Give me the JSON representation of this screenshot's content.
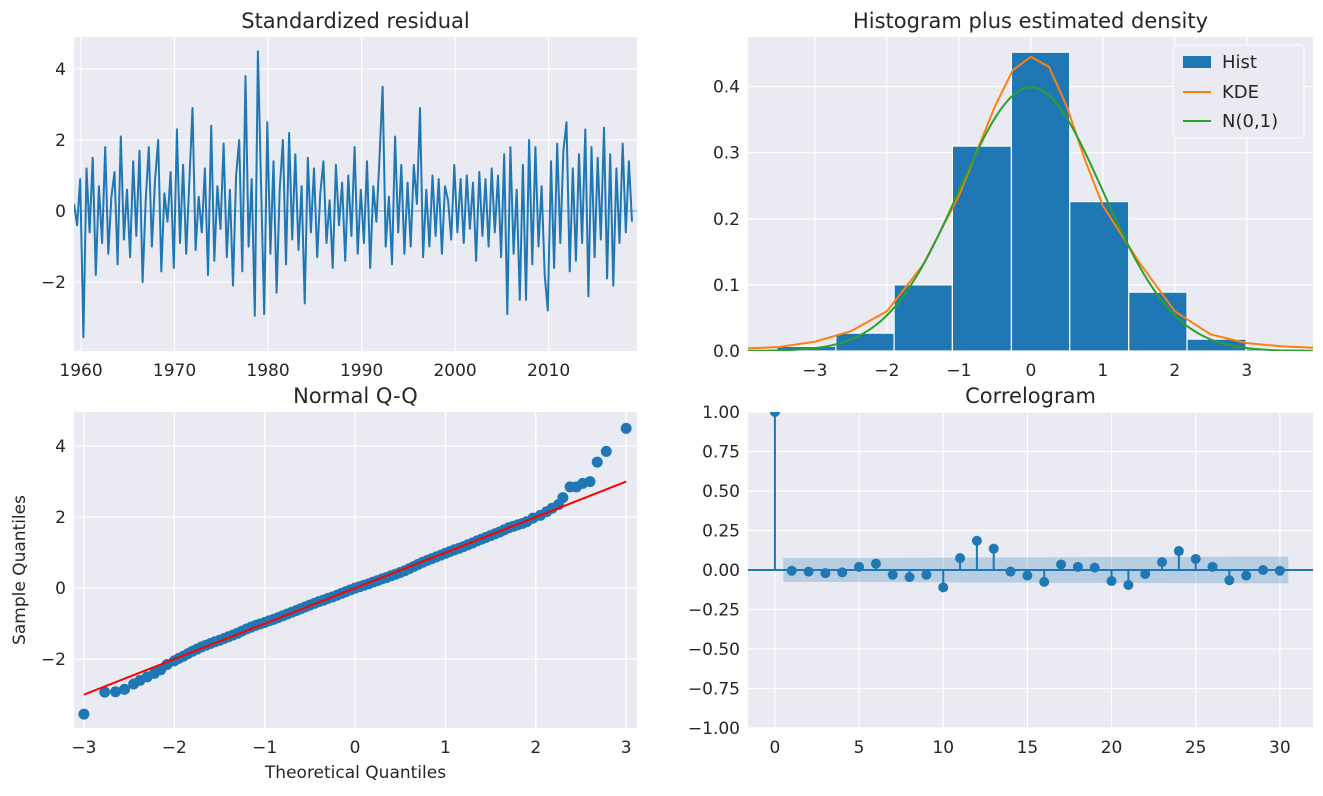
{
  "colors": {
    "axes_bg": "#EAEAF2",
    "grid": "#FFFFFF",
    "series": "#1F77B4",
    "kde": "#FF7F0E",
    "normal": "#2CA02C",
    "qq_line": "#FF0000",
    "band": "#1F77B4"
  },
  "chart_data": [
    {
      "type": "line",
      "title": "Standardized residual",
      "xlabel": "",
      "ylabel": "",
      "xlim": [
        1959.25,
        2019.45
      ],
      "ylim": [
        -3.94,
        4.9
      ],
      "grid": true,
      "xticks": [
        1960,
        1970,
        1980,
        1990,
        2000,
        2010
      ],
      "xtick_labels": [
        "1960",
        "1970",
        "1980",
        "1990",
        "2000",
        "2010"
      ],
      "yticks": [
        -2,
        0,
        2,
        4
      ],
      "ytick_labels": [
        "−2",
        "0",
        "2",
        "4"
      ],
      "values": [
        0.2,
        -0.4,
        0.9,
        -3.55,
        1.2,
        -0.6,
        1.5,
        -1.8,
        0.7,
        -0.9,
        1.8,
        -1.2,
        0.4,
        1.1,
        -1.5,
        2.1,
        -0.8,
        0.6,
        -1.3,
        1.4,
        -0.7,
        1.7,
        -2.0,
        0.3,
        1.8,
        -1.0,
        0.9,
        2.0,
        -1.7,
        0.5,
        -0.3,
        1.1,
        -1.6,
        2.3,
        -0.9,
        1.3,
        -1.2,
        0.8,
        2.9,
        -1.1,
        0.4,
        -0.6,
        1.2,
        -1.8,
        2.4,
        -1.4,
        0.7,
        -0.5,
        1.9,
        -1.3,
        0.6,
        -2.1,
        1.0,
        2.0,
        -1.7,
        3.8,
        -1.0,
        0.9,
        -2.95,
        4.5,
        0.8,
        -2.9,
        2.5,
        -1.2,
        1.4,
        -2.3,
        0.6,
        2.0,
        -1.5,
        2.2,
        -0.8,
        1.6,
        -1.1,
        0.7,
        -2.6,
        1.5,
        -0.6,
        1.2,
        -1.3,
        0.5,
        1.4,
        -0.9,
        0.3,
        -1.6,
        1.3,
        -0.4,
        0.8,
        -1.4,
        1.0,
        -0.7,
        1.8,
        -1.2,
        0.6,
        -0.9,
        1.4,
        -1.6,
        0.7,
        -0.3,
        1.5,
        3.5,
        -1.0,
        0.4,
        -1.5,
        2.1,
        -0.6,
        1.3,
        -1.2,
        0.8,
        -1.0,
        1.3,
        0.2,
        2.9,
        -1.3,
        0.6,
        -1.0,
        1.0,
        -0.7,
        0.9,
        -1.2,
        0.7,
        0.3,
        -0.8,
        1.3,
        -0.6,
        0.9,
        -0.9,
        1.0,
        -0.5,
        0.8,
        -1.4,
        1.1,
        -0.7,
        0.9,
        -1.0,
        1.2,
        -0.6,
        1.0,
        -1.3,
        1.6,
        -2.9,
        1.8,
        -1.2,
        0.6,
        -2.5,
        1.3,
        -2.5,
        2.0,
        -1.5,
        1.8,
        -1.0,
        0.7,
        -1.8,
        -2.8,
        1.4,
        -1.6,
        1.9,
        -0.9,
        1.7,
        2.5,
        -1.7,
        1.2,
        -1.4,
        1.6,
        -0.9,
        2.3,
        -2.4,
        1.8,
        -1.3,
        1.5,
        -0.8,
        2.35,
        -1.9,
        1.6,
        -2.1,
        1.2,
        -0.9,
        1.9,
        -0.6,
        1.4,
        -0.3
      ]
    },
    {
      "type": "bar",
      "title": "Histogram plus estimated density",
      "xlim": [
        -3.93,
        3.92
      ],
      "ylim": [
        0,
        0.475
      ],
      "grid": true,
      "xticks": [
        -3,
        -2,
        -1,
        0,
        1,
        2,
        3
      ],
      "xtick_labels": [
        "−3",
        "−2",
        "−1",
        "0",
        "1",
        "2",
        "3"
      ],
      "yticks": [
        0,
        0.1,
        0.2,
        0.3,
        0.4
      ],
      "ytick_labels": [
        "0.0",
        "0.1",
        "0.2",
        "0.3",
        "0.4"
      ],
      "bin_edges": [
        -3.53,
        -2.71,
        -1.9,
        -1.09,
        -0.27,
        0.54,
        1.36,
        2.17,
        2.99,
        3.8
      ],
      "values": [
        0.007,
        0.027,
        0.1,
        0.31,
        0.452,
        0.226,
        0.089,
        0.018,
        0.003
      ],
      "kde": {
        "x": [
          -3.93,
          -3.5,
          -3,
          -2.5,
          -2,
          -1.5,
          -1,
          -0.5,
          -0.25,
          0,
          0.25,
          0.5,
          0.75,
          1,
          1.5,
          2,
          2.5,
          3,
          3.5,
          3.92
        ],
        "y": [
          0.004,
          0.006,
          0.014,
          0.03,
          0.06,
          0.13,
          0.235,
          0.37,
          0.425,
          0.445,
          0.43,
          0.37,
          0.29,
          0.22,
          0.135,
          0.06,
          0.025,
          0.012,
          0.007,
          0.005
        ]
      },
      "normal": {
        "mean": 0,
        "sd": 1
      },
      "legend": {
        "placement": "top-right",
        "entries": [
          "Hist",
          "KDE",
          "N(0,1)"
        ]
      }
    },
    {
      "type": "scatter",
      "title": "Normal Q-Q",
      "xlabel": "Theoretical Quantiles",
      "ylabel": "Sample Quantiles",
      "xlim": [
        -3.11,
        3.12
      ],
      "ylim": [
        -3.94,
        4.96
      ],
      "grid": true,
      "xticks": [
        -3,
        -2,
        -1,
        0,
        1,
        2,
        3
      ],
      "xtick_labels": [
        "−3",
        "−2",
        "−1",
        "0",
        "1",
        "2",
        "3"
      ],
      "yticks": [
        -2,
        0,
        2,
        4
      ],
      "ytick_labels": [
        "−2",
        "0",
        "2",
        "4"
      ],
      "points": [
        [
          -3.0,
          -3.55
        ],
        [
          -2.77,
          -2.93
        ],
        [
          -2.65,
          -2.92
        ],
        [
          -2.55,
          -2.85
        ],
        [
          -2.45,
          -2.7
        ],
        [
          -2.38,
          -2.6
        ],
        [
          -2.3,
          -2.5
        ],
        [
          -2.22,
          -2.4
        ],
        [
          -2.15,
          -2.3
        ],
        [
          -2.08,
          -2.15
        ],
        [
          -2.0,
          -2.05
        ],
        [
          -1.95,
          -1.98
        ],
        [
          -1.9,
          -1.92
        ],
        [
          -1.85,
          -1.85
        ],
        [
          -1.8,
          -1.78
        ],
        [
          -1.75,
          -1.72
        ],
        [
          -1.7,
          -1.66
        ],
        [
          -1.65,
          -1.61
        ],
        [
          -1.6,
          -1.56
        ],
        [
          -1.55,
          -1.51
        ],
        [
          -1.5,
          -1.47
        ],
        [
          -1.45,
          -1.42
        ],
        [
          -1.4,
          -1.37
        ],
        [
          -1.35,
          -1.32
        ],
        [
          -1.3,
          -1.27
        ],
        [
          -1.25,
          -1.21
        ],
        [
          -1.2,
          -1.15
        ],
        [
          -1.15,
          -1.1
        ],
        [
          -1.1,
          -1.05
        ],
        [
          -1.05,
          -1.01
        ],
        [
          -1.0,
          -0.97
        ],
        [
          -0.95,
          -0.92
        ],
        [
          -0.9,
          -0.88
        ],
        [
          -0.85,
          -0.83
        ],
        [
          -0.8,
          -0.78
        ],
        [
          -0.75,
          -0.73
        ],
        [
          -0.7,
          -0.68
        ],
        [
          -0.65,
          -0.63
        ],
        [
          -0.6,
          -0.58
        ],
        [
          -0.55,
          -0.53
        ],
        [
          -0.5,
          -0.48
        ],
        [
          -0.45,
          -0.43
        ],
        [
          -0.4,
          -0.38
        ],
        [
          -0.35,
          -0.34
        ],
        [
          -0.3,
          -0.29
        ],
        [
          -0.25,
          -0.25
        ],
        [
          -0.2,
          -0.2
        ],
        [
          -0.15,
          -0.15
        ],
        [
          -0.1,
          -0.1
        ],
        [
          -0.05,
          -0.05
        ],
        [
          0,
          0
        ],
        [
          0.05,
          0.04
        ],
        [
          0.1,
          0.08
        ],
        [
          0.15,
          0.12
        ],
        [
          0.2,
          0.17
        ],
        [
          0.25,
          0.21
        ],
        [
          0.3,
          0.26
        ],
        [
          0.35,
          0.3
        ],
        [
          0.4,
          0.35
        ],
        [
          0.45,
          0.39
        ],
        [
          0.5,
          0.44
        ],
        [
          0.55,
          0.49
        ],
        [
          0.6,
          0.55
        ],
        [
          0.65,
          0.61
        ],
        [
          0.7,
          0.67
        ],
        [
          0.75,
          0.73
        ],
        [
          0.8,
          0.78
        ],
        [
          0.85,
          0.83
        ],
        [
          0.9,
          0.88
        ],
        [
          0.95,
          0.93
        ],
        [
          1.0,
          0.98
        ],
        [
          1.05,
          1.03
        ],
        [
          1.1,
          1.08
        ],
        [
          1.15,
          1.12
        ],
        [
          1.2,
          1.17
        ],
        [
          1.25,
          1.22
        ],
        [
          1.3,
          1.27
        ],
        [
          1.35,
          1.33
        ],
        [
          1.4,
          1.38
        ],
        [
          1.45,
          1.43
        ],
        [
          1.5,
          1.48
        ],
        [
          1.55,
          1.53
        ],
        [
          1.6,
          1.58
        ],
        [
          1.65,
          1.64
        ],
        [
          1.7,
          1.7
        ],
        [
          1.75,
          1.74
        ],
        [
          1.8,
          1.78
        ],
        [
          1.85,
          1.82
        ],
        [
          1.9,
          1.87
        ],
        [
          1.97,
          1.97
        ],
        [
          2.05,
          2.05
        ],
        [
          2.12,
          2.15
        ],
        [
          2.18,
          2.25
        ],
        [
          2.25,
          2.35
        ],
        [
          2.3,
          2.55
        ],
        [
          2.38,
          2.85
        ],
        [
          2.45,
          2.85
        ],
        [
          2.52,
          2.95
        ],
        [
          2.6,
          3.0
        ],
        [
          2.68,
          3.55
        ],
        [
          2.78,
          3.85
        ],
        [
          3.0,
          4.5
        ]
      ],
      "reference_line": [
        [
          -3.0,
          -3.0
        ],
        [
          3.0,
          3.0
        ]
      ]
    },
    {
      "type": "stem",
      "title": "Correlogram",
      "xlim": [
        -1.6,
        31.97
      ],
      "ylim": [
        -1,
        1
      ],
      "grid": true,
      "xticks": [
        0,
        5,
        10,
        15,
        20,
        25,
        30
      ],
      "xtick_labels": [
        "0",
        "5",
        "10",
        "15",
        "20",
        "25",
        "30"
      ],
      "yticks": [
        -1,
        -0.75,
        -0.5,
        -0.25,
        0,
        0.25,
        0.5,
        0.75,
        1
      ],
      "ytick_labels": [
        "−1.00",
        "−0.75",
        "−0.50",
        "−0.25",
        "0.00",
        "0.25",
        "0.50",
        "0.75",
        "1.00"
      ],
      "lags": [
        0,
        1,
        2,
        3,
        4,
        5,
        6,
        7,
        8,
        9,
        10,
        11,
        12,
        13,
        14,
        15,
        16,
        17,
        18,
        19,
        20,
        21,
        22,
        23,
        24,
        25,
        26,
        27,
        28,
        29,
        30
      ],
      "values": [
        1.0,
        -0.005,
        -0.01,
        -0.02,
        -0.015,
        0.02,
        0.04,
        -0.03,
        -0.045,
        -0.03,
        -0.11,
        0.075,
        0.185,
        0.135,
        -0.01,
        -0.035,
        -0.075,
        0.035,
        0.02,
        0.015,
        -0.07,
        -0.095,
        -0.025,
        0.05,
        0.12,
        0.07,
        0.02,
        -0.065,
        -0.035,
        0.0,
        -0.005
      ],
      "confidence_band": {
        "from_lag": 0.5,
        "to_lag": 30.5,
        "halfwidth_start": 0.075,
        "halfwidth_end": 0.085
      }
    }
  ]
}
